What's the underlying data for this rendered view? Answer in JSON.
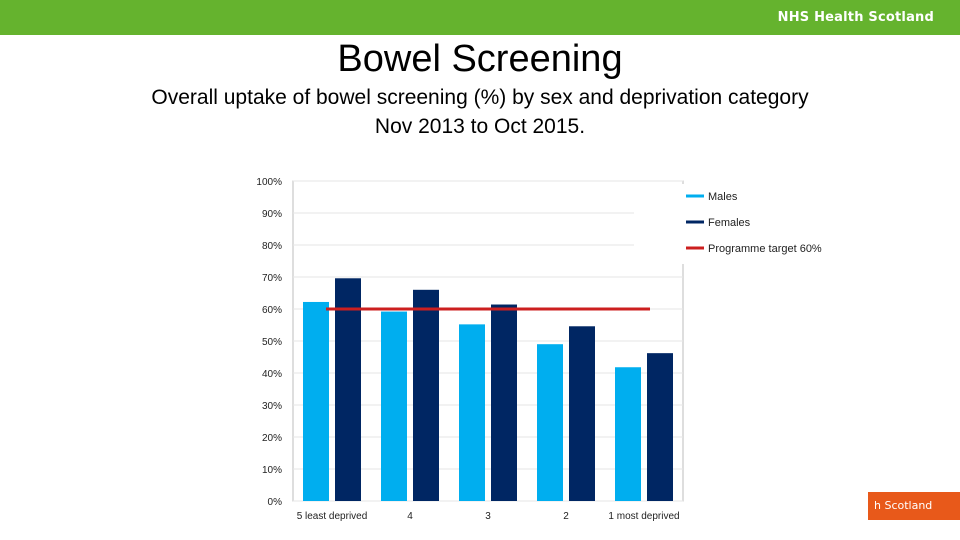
{
  "colors": {
    "header_bar": "#65b32e",
    "footer_tab": "#e8591a",
    "males": "#00aeef",
    "females": "#002663",
    "target": "#cc1f1f"
  },
  "header": {
    "brand": "NHS Health Scotland"
  },
  "footer": {
    "brand_fragment": "h Scotland"
  },
  "slide": {
    "title": "Bowel Screening",
    "subtitle_line1": "Overall uptake of bowel screening (%) by sex and deprivation category",
    "subtitle_line2": "Nov 2013 to Oct 2015."
  },
  "chart_data": {
    "type": "bar",
    "categories": [
      "5 least deprived",
      "4",
      "3",
      "2",
      "1 most deprived"
    ],
    "series": [
      {
        "name": "Males",
        "values": [
          62.2,
          59.2,
          55.2,
          49.0,
          41.8
        ]
      },
      {
        "name": "Females",
        "values": [
          69.6,
          66.0,
          61.4,
          54.6,
          46.2
        ]
      }
    ],
    "reference_line": {
      "name": "Programme target 60%",
      "value": 60
    },
    "ylim": [
      0,
      100
    ],
    "y_ticks": [
      "0%",
      "10%",
      "20%",
      "30%",
      "40%",
      "50%",
      "60%",
      "70%",
      "80%",
      "90%",
      "100%"
    ],
    "legend_position": "top-right",
    "grid": true
  }
}
